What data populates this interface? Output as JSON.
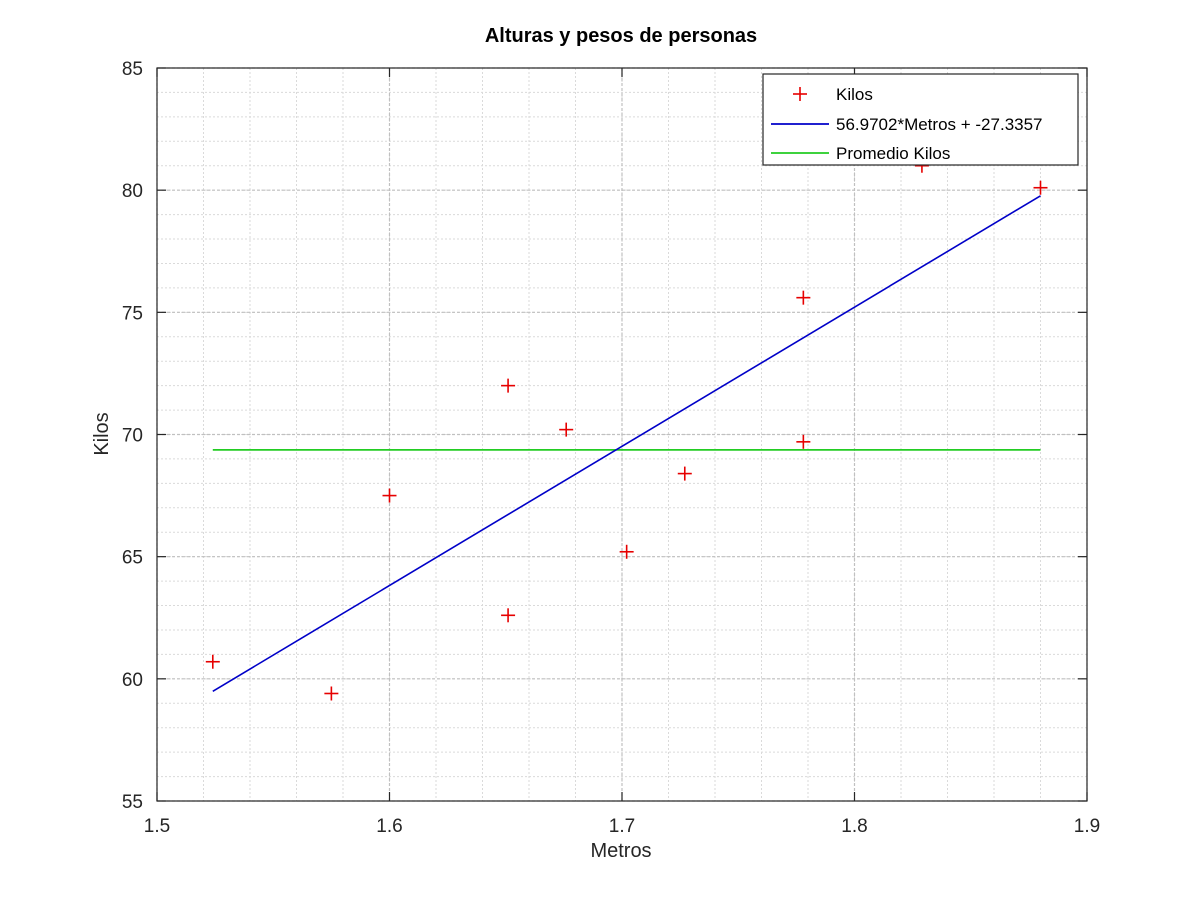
{
  "colors": {
    "scatter": "#e60000",
    "fit_line": "#0000c8",
    "mean_line": "#22cc22",
    "grid_major": "#c0c0c0",
    "grid_minor": "#dadada",
    "axis": "#262626"
  },
  "chart_data": {
    "type": "scatter",
    "title": "Alturas y pesos de personas",
    "xlabel": "Metros",
    "ylabel": "Kilos",
    "xlim": [
      1.5,
      1.9
    ],
    "ylim": [
      55,
      85
    ],
    "xticks": [
      1.5,
      1.6,
      1.7,
      1.8,
      1.9
    ],
    "xtick_labels": [
      "1.5",
      "1.6",
      "1.7",
      "1.8",
      "1.9"
    ],
    "yticks": [
      55,
      60,
      65,
      70,
      75,
      80,
      85
    ],
    "ytick_labels": [
      "55",
      "60",
      "65",
      "70",
      "75",
      "80",
      "85"
    ],
    "grid": "major and minor",
    "legend_position": "top-right",
    "series": [
      {
        "name": "Kilos",
        "kind": "markers",
        "marker": "+",
        "x": [
          1.524,
          1.575,
          1.6,
          1.651,
          1.651,
          1.676,
          1.702,
          1.727,
          1.778,
          1.778,
          1.829,
          1.88
        ],
        "y": [
          60.7,
          59.4,
          67.5,
          62.6,
          72.0,
          70.2,
          65.2,
          68.4,
          75.6,
          69.7,
          81.0,
          80.1
        ]
      },
      {
        "name": "56.9702*Metros + -27.3357",
        "kind": "line",
        "x": [
          1.524,
          1.88
        ],
        "y": [
          59.49,
          79.77
        ]
      },
      {
        "name": "Promedio Kilos",
        "kind": "line",
        "x": [
          1.524,
          1.88
        ],
        "y": [
          69.37,
          69.37
        ]
      }
    ]
  }
}
